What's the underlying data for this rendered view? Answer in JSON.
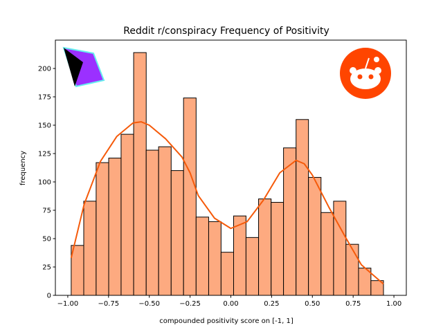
{
  "chart_data": {
    "type": "histogram",
    "title": "Reddit r/conspiracy Frequency of Positivity",
    "x_label": "compounded positivity score on [-1, 1]",
    "y_label": "frequency",
    "bins": [
      -0.979,
      -0.902,
      -0.826,
      -0.749,
      -0.673,
      -0.596,
      -0.519,
      -0.443,
      -0.366,
      -0.29,
      -0.213,
      -0.136,
      -0.06,
      0.017,
      0.093,
      0.17,
      0.247,
      0.323,
      0.4,
      0.476,
      0.553,
      0.63,
      0.706,
      0.783,
      0.859,
      0.936
    ],
    "counts": [
      44,
      83,
      117,
      121,
      142,
      214,
      128,
      131,
      110,
      174,
      69,
      65,
      38,
      70,
      51,
      85,
      82,
      130,
      155,
      104,
      73,
      83,
      45,
      24,
      13
    ],
    "color": "#fdaa80",
    "edge_color": "#000000",
    "kde": {
      "color": "#f55a0a",
      "x": [
        -0.979,
        -0.9,
        -0.8,
        -0.7,
        -0.6,
        -0.55,
        -0.5,
        -0.4,
        -0.3,
        -0.25,
        -0.2,
        -0.1,
        0,
        0.1,
        0.2,
        0.3,
        0.4,
        0.45,
        0.5,
        0.6,
        0.7,
        0.8,
        0.936
      ],
      "values": [
        33,
        80,
        118,
        140,
        152,
        153,
        150,
        138,
        122,
        108,
        88,
        68,
        59,
        65,
        84,
        108,
        119,
        116,
        106,
        78,
        52,
        27,
        10
      ]
    },
    "xlim": [
      -1.076,
      1.076
    ],
    "ylim": [
      0,
      225
    ],
    "xticks": [
      {
        "value": -1,
        "label": "−1.00"
      },
      {
        "value": -0.75,
        "label": "−0.75"
      },
      {
        "value": -0.5,
        "label": "−0.50"
      },
      {
        "value": -0.25,
        "label": "−0.25"
      },
      {
        "value": 0,
        "label": "0.00"
      },
      {
        "value": 0.25,
        "label": "0.25"
      },
      {
        "value": 0.5,
        "label": "0.50"
      },
      {
        "value": 0.75,
        "label": "0.75"
      },
      {
        "value": 1,
        "label": "1.00"
      }
    ],
    "yticks": [
      0,
      25,
      50,
      75,
      100,
      125,
      150,
      175,
      200
    ]
  }
}
